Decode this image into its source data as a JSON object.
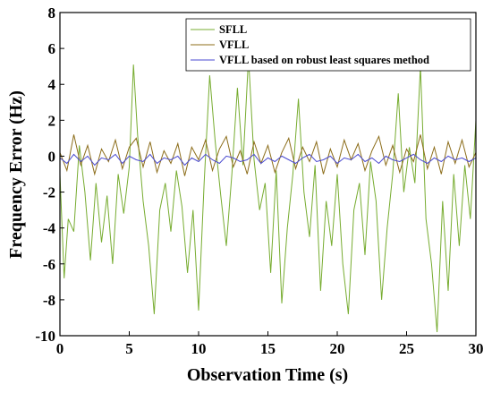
{
  "chart_data": {
    "type": "line",
    "title": "",
    "xlabel": "Observation Time (s)",
    "ylabel": "Frequency Error (Hz)",
    "xlim": [
      0,
      30
    ],
    "ylim": [
      -10,
      8
    ],
    "xticks": [
      "0",
      "5",
      "10",
      "15",
      "20",
      "25",
      "30"
    ],
    "yticks": [
      "8",
      "6",
      "4",
      "2",
      "0",
      "-2",
      "-4",
      "-6",
      "-8",
      "-10"
    ],
    "grid": false,
    "legend_position": "top-right",
    "series": [
      {
        "name": "SFLL",
        "color": "#77ac30",
        "x": [
          0,
          0.3,
          0.6,
          1.0,
          1.4,
          1.8,
          2.2,
          2.6,
          3.0,
          3.4,
          3.8,
          4.2,
          4.6,
          5.0,
          5.3,
          5.6,
          6.0,
          6.4,
          6.8,
          7.2,
          7.6,
          8.0,
          8.4,
          8.8,
          9.2,
          9.6,
          10.0,
          10.4,
          10.8,
          11.2,
          11.6,
          12.0,
          12.4,
          12.8,
          13.2,
          13.6,
          14.0,
          14.4,
          14.8,
          15.2,
          15.6,
          16.0,
          16.4,
          16.8,
          17.2,
          17.6,
          18.0,
          18.4,
          18.8,
          19.2,
          19.6,
          20.0,
          20.4,
          20.8,
          21.2,
          21.6,
          22.0,
          22.4,
          22.8,
          23.2,
          23.6,
          24.0,
          24.4,
          24.8,
          25.2,
          25.6,
          26.0,
          26.4,
          26.8,
          27.2,
          27.6,
          28.0,
          28.4,
          28.8,
          29.2,
          29.6,
          30.0
        ],
        "y": [
          -1.0,
          -6.8,
          -3.5,
          -4.2,
          0.6,
          -2.0,
          -5.8,
          -1.5,
          -4.8,
          -2.2,
          -6.0,
          -1.0,
          -3.2,
          -0.6,
          5.1,
          1.2,
          -2.5,
          -5.0,
          -8.8,
          -3.0,
          -1.5,
          -4.2,
          -0.8,
          -2.8,
          -6.5,
          -3.0,
          -8.6,
          -1.5,
          4.5,
          0.8,
          -2.2,
          -5.0,
          -1.0,
          3.8,
          -0.5,
          5.5,
          -0.2,
          -3.0,
          -1.5,
          -6.5,
          -0.8,
          -8.2,
          -4.0,
          -1.0,
          3.2,
          -2.0,
          -4.5,
          -0.5,
          -7.5,
          -2.5,
          -5.0,
          -1.0,
          -6.0,
          -8.8,
          -3.0,
          -1.5,
          -5.5,
          -0.3,
          -2.5,
          -8.0,
          -4.0,
          -1.0,
          3.5,
          -2.0,
          0.5,
          -1.5,
          5.0,
          -3.5,
          -6.0,
          -9.8,
          -2.5,
          -7.5,
          -1.0,
          -5.0,
          -0.5,
          -3.5,
          2.0
        ]
      },
      {
        "name": "VFLL",
        "color": "#8c6d1a",
        "x": [
          0,
          0.5,
          1.0,
          1.5,
          2.0,
          2.5,
          3.0,
          3.5,
          4.0,
          4.5,
          5.0,
          5.5,
          6.0,
          6.5,
          7.0,
          7.5,
          8.0,
          8.5,
          9.0,
          9.5,
          10.0,
          10.5,
          11.0,
          11.5,
          12.0,
          12.5,
          13.0,
          13.5,
          14.0,
          14.5,
          15.0,
          15.5,
          16.0,
          16.5,
          17.0,
          17.5,
          18.0,
          18.5,
          19.0,
          19.5,
          20.0,
          20.5,
          21.0,
          21.5,
          22.0,
          22.5,
          23.0,
          23.5,
          24.0,
          24.5,
          25.0,
          25.5,
          26.0,
          26.5,
          27.0,
          27.5,
          28.0,
          28.5,
          29.0,
          29.5,
          30.0
        ],
        "y": [
          0.2,
          -0.8,
          1.2,
          -0.5,
          0.6,
          -1.0,
          0.4,
          -0.3,
          0.9,
          -0.7,
          0.5,
          1.0,
          -0.6,
          0.8,
          -0.9,
          0.3,
          -0.4,
          0.7,
          -1.1,
          0.5,
          -0.2,
          0.9,
          -0.8,
          0.4,
          1.1,
          -0.6,
          0.3,
          -1.0,
          0.8,
          -0.4,
          0.6,
          -0.9,
          0.2,
          1.0,
          -0.7,
          0.5,
          -0.3,
          0.8,
          -1.0,
          0.4,
          -0.6,
          0.9,
          -0.2,
          0.7,
          -0.8,
          0.3,
          1.1,
          -0.5,
          0.6,
          -0.9,
          0.4,
          -0.3,
          1.2,
          -0.7,
          0.5,
          -1.0,
          0.8,
          -0.4,
          0.9,
          -0.6,
          0.2
        ]
      },
      {
        "name": "VFLL based on robust least squares method",
        "color": "#4a4ad0",
        "x": [
          0,
          0.5,
          1.0,
          1.5,
          2.0,
          2.5,
          3.0,
          3.5,
          4.0,
          4.5,
          5.0,
          5.5,
          6.0,
          6.5,
          7.0,
          7.5,
          8.0,
          8.5,
          9.0,
          9.5,
          10.0,
          10.5,
          11.0,
          11.5,
          12.0,
          12.5,
          13.0,
          13.5,
          14.0,
          14.5,
          15.0,
          15.5,
          16.0,
          16.5,
          17.0,
          17.5,
          18.0,
          18.5,
          19.0,
          19.5,
          20.0,
          20.5,
          21.0,
          21.5,
          22.0,
          22.5,
          23.0,
          23.5,
          24.0,
          24.5,
          25.0,
          25.5,
          26.0,
          26.5,
          27.0,
          27.5,
          28.0,
          28.5,
          29.0,
          29.5,
          30.0
        ],
        "y": [
          -0.1,
          -0.4,
          0.1,
          -0.3,
          0.0,
          -0.5,
          -0.1,
          -0.2,
          0.1,
          -0.4,
          0.0,
          -0.2,
          -0.3,
          0.1,
          -0.4,
          -0.1,
          -0.2,
          0.0,
          -0.5,
          -0.1,
          -0.3,
          0.1,
          -0.2,
          -0.4,
          0.0,
          -0.1,
          -0.3,
          -0.2,
          0.1,
          -0.4,
          -0.1,
          -0.3,
          0.0,
          -0.2,
          -0.4,
          -0.1,
          0.1,
          -0.3,
          -0.2,
          0.0,
          -0.4,
          -0.1,
          -0.2,
          0.1,
          -0.3,
          -0.1,
          -0.4,
          0.0,
          -0.2,
          -0.3,
          -0.1,
          0.1,
          -0.2,
          -0.4,
          -0.1,
          -0.3,
          0.0,
          -0.2,
          -0.1,
          -0.3,
          -0.1
        ]
      }
    ]
  }
}
